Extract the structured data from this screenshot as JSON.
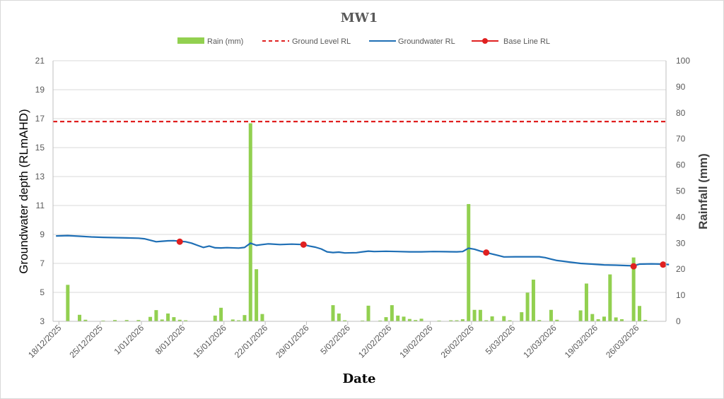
{
  "chart_data": {
    "type": "line",
    "title": "MW1",
    "xlabel": "Date",
    "ylabel": "Groundwater depth (RLmAHD)",
    "y2label": "Rainfall (mm)",
    "ylim": [
      3,
      21
    ],
    "y_ticks": [
      3,
      5,
      7,
      9,
      11,
      13,
      15,
      17,
      19,
      21
    ],
    "y2lim": [
      0,
      100
    ],
    "y2_ticks": [
      0,
      10,
      20,
      30,
      40,
      50,
      60,
      70,
      80,
      90,
      100
    ],
    "xlim": [
      "2025-12-17",
      "2026-03-31"
    ],
    "x_ticks": [
      "18/12/2025",
      "25/12/2025",
      "1/01/2026",
      "8/01/2026",
      "15/01/2026",
      "22/01/2026",
      "29/01/2026",
      "5/02/2026",
      "12/02/2026",
      "19/02/2026",
      "26/02/2026",
      "5/03/2026",
      "12/03/2026",
      "19/03/2026",
      "26/03/2026"
    ],
    "grid": true,
    "legend_position": "top",
    "series": [
      {
        "name": "Rain (mm)",
        "kind": "bar",
        "axis": "right",
        "color": "#92d050",
        "points": [
          [
            "2025-12-19",
            14
          ],
          [
            "2025-12-21",
            2.5
          ],
          [
            "2025-12-22",
            0.6
          ],
          [
            "2025-12-25",
            0.3
          ],
          [
            "2025-12-27",
            0.5
          ],
          [
            "2025-12-29",
            0.5
          ],
          [
            "2025-12-31",
            0.5
          ],
          [
            "2026-01-02",
            1.7
          ],
          [
            "2026-01-03",
            4.3
          ],
          [
            "2026-01-04",
            0.7
          ],
          [
            "2026-01-05",
            3
          ],
          [
            "2026-01-06",
            1.6
          ],
          [
            "2026-01-07",
            0.6
          ],
          [
            "2026-01-08",
            0.4
          ],
          [
            "2026-01-13",
            2.2
          ],
          [
            "2026-01-14",
            5.2
          ],
          [
            "2026-01-16",
            0.7
          ],
          [
            "2026-01-17",
            0.4
          ],
          [
            "2026-01-18",
            2.4
          ],
          [
            "2026-01-19",
            76
          ],
          [
            "2026-01-20",
            20
          ],
          [
            "2026-01-21",
            2.8
          ],
          [
            "2026-02-02",
            6.2
          ],
          [
            "2026-02-03",
            3
          ],
          [
            "2026-02-04",
            0.4
          ],
          [
            "2026-02-07",
            0.3
          ],
          [
            "2026-02-08",
            6
          ],
          [
            "2026-02-10",
            0.3
          ],
          [
            "2026-02-11",
            1.6
          ],
          [
            "2026-02-12",
            6.2
          ],
          [
            "2026-02-13",
            2.2
          ],
          [
            "2026-02-14",
            1.8
          ],
          [
            "2026-02-15",
            0.9
          ],
          [
            "2026-02-16",
            0.5
          ],
          [
            "2026-02-17",
            1
          ],
          [
            "2026-02-20",
            0.3
          ],
          [
            "2026-02-22",
            0.4
          ],
          [
            "2026-02-23",
            0.4
          ],
          [
            "2026-02-24",
            0.8
          ],
          [
            "2026-02-25",
            45
          ],
          [
            "2026-02-26",
            4.4
          ],
          [
            "2026-02-27",
            4.4
          ],
          [
            "2026-02-28",
            0.4
          ],
          [
            "2026-03-01",
            1.9
          ],
          [
            "2026-03-03",
            2
          ],
          [
            "2026-03-04",
            0.4
          ],
          [
            "2026-03-06",
            3.5
          ],
          [
            "2026-03-07",
            11
          ],
          [
            "2026-03-08",
            16
          ],
          [
            "2026-03-09",
            0.5
          ],
          [
            "2026-03-11",
            4.4
          ],
          [
            "2026-03-12",
            0.6
          ],
          [
            "2026-03-16",
            4.2
          ],
          [
            "2026-03-17",
            14.5
          ],
          [
            "2026-03-18",
            2.8
          ],
          [
            "2026-03-19",
            0.8
          ],
          [
            "2026-03-20",
            1.8
          ],
          [
            "2026-03-21",
            18
          ],
          [
            "2026-03-22",
            1.5
          ],
          [
            "2026-03-23",
            0.8
          ],
          [
            "2026-03-25",
            24.5
          ],
          [
            "2026-03-26",
            5.9
          ],
          [
            "2026-03-27",
            0.5
          ]
        ]
      },
      {
        "name": "Ground Level RL",
        "kind": "dashed-line",
        "axis": "left",
        "color": "#e02020",
        "value": 16.8
      },
      {
        "name": "Groundwater RL",
        "kind": "line",
        "axis": "left",
        "color": "#1f6fb5",
        "points": [
          [
            "2025-12-17",
            8.9
          ],
          [
            "2025-12-19",
            8.92
          ],
          [
            "2025-12-21",
            8.88
          ],
          [
            "2025-12-23",
            8.83
          ],
          [
            "2025-12-25",
            8.8
          ],
          [
            "2025-12-27",
            8.78
          ],
          [
            "2025-12-29",
            8.76
          ],
          [
            "2025-12-31",
            8.74
          ],
          [
            "2026-01-01",
            8.7
          ],
          [
            "2026-01-02",
            8.6
          ],
          [
            "2026-01-03",
            8.5
          ],
          [
            "2026-01-04",
            8.53
          ],
          [
            "2026-01-05",
            8.56
          ],
          [
            "2026-01-06",
            8.57
          ],
          [
            "2026-01-07",
            8.53
          ],
          [
            "2026-01-08",
            8.5
          ],
          [
            "2026-01-09",
            8.4
          ],
          [
            "2026-01-10",
            8.25
          ],
          [
            "2026-01-11",
            8.1
          ],
          [
            "2026-01-12",
            8.2
          ],
          [
            "2026-01-13",
            8.08
          ],
          [
            "2026-01-14",
            8.07
          ],
          [
            "2026-01-15",
            8.09
          ],
          [
            "2026-01-17",
            8.06
          ],
          [
            "2026-01-18",
            8.1
          ],
          [
            "2026-01-19",
            8.4
          ],
          [
            "2026-01-20",
            8.25
          ],
          [
            "2026-01-21",
            8.3
          ],
          [
            "2026-01-22",
            8.35
          ],
          [
            "2026-01-24",
            8.3
          ],
          [
            "2026-01-26",
            8.33
          ],
          [
            "2026-01-28",
            8.3
          ],
          [
            "2026-01-29",
            8.2
          ],
          [
            "2026-01-30",
            8.12
          ],
          [
            "2026-01-31",
            8.0
          ],
          [
            "2026-02-01",
            7.8
          ],
          [
            "2026-02-02",
            7.75
          ],
          [
            "2026-02-03",
            7.78
          ],
          [
            "2026-02-04",
            7.72
          ],
          [
            "2026-02-06",
            7.74
          ],
          [
            "2026-02-07",
            7.8
          ],
          [
            "2026-02-08",
            7.85
          ],
          [
            "2026-02-09",
            7.82
          ],
          [
            "2026-02-11",
            7.84
          ],
          [
            "2026-02-13",
            7.82
          ],
          [
            "2026-02-15",
            7.8
          ],
          [
            "2026-02-17",
            7.8
          ],
          [
            "2026-02-19",
            7.82
          ],
          [
            "2026-02-21",
            7.81
          ],
          [
            "2026-02-23",
            7.8
          ],
          [
            "2026-02-24",
            7.82
          ],
          [
            "2026-02-25",
            8.05
          ],
          [
            "2026-02-26",
            7.98
          ],
          [
            "2026-02-27",
            7.85
          ],
          [
            "2026-02-28",
            7.75
          ],
          [
            "2026-03-01",
            7.65
          ],
          [
            "2026-03-02",
            7.55
          ],
          [
            "2026-03-03",
            7.45
          ],
          [
            "2026-03-05",
            7.46
          ],
          [
            "2026-03-07",
            7.46
          ],
          [
            "2026-03-09",
            7.46
          ],
          [
            "2026-03-10",
            7.4
          ],
          [
            "2026-03-11",
            7.3
          ],
          [
            "2026-03-12",
            7.2
          ],
          [
            "2026-03-13",
            7.15
          ],
          [
            "2026-03-14",
            7.1
          ],
          [
            "2026-03-16",
            7.0
          ],
          [
            "2026-03-18",
            6.95
          ],
          [
            "2026-03-20",
            6.9
          ],
          [
            "2026-03-22",
            6.88
          ],
          [
            "2026-03-24",
            6.85
          ],
          [
            "2026-03-25",
            6.83
          ],
          [
            "2026-03-26",
            6.95
          ],
          [
            "2026-03-28",
            6.97
          ],
          [
            "2026-03-30",
            6.95
          ],
          [
            "2026-03-31",
            6.92
          ]
        ]
      },
      {
        "name": "Base Line RL",
        "kind": "markers",
        "axis": "left",
        "color": "#e02020",
        "points": [
          [
            "2026-01-07",
            8.5
          ],
          [
            "2026-01-28",
            8.3
          ],
          [
            "2026-02-28",
            7.75
          ],
          [
            "2026-03-25",
            6.8
          ],
          [
            "2026-03-30",
            6.92
          ]
        ]
      }
    ]
  }
}
